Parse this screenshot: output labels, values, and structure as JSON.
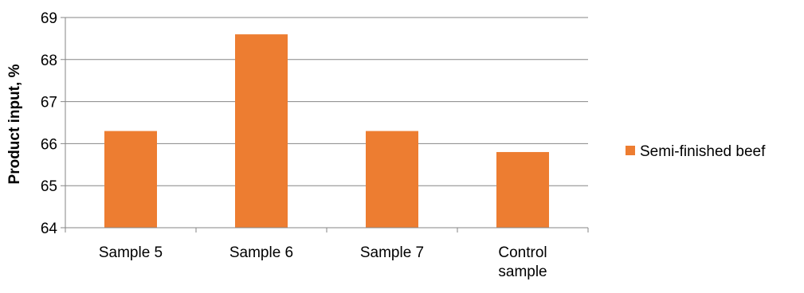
{
  "chart_data": {
    "type": "bar",
    "categories": [
      "Sample 5",
      "Sample 6",
      "Sample 7",
      "Control sample"
    ],
    "series": [
      {
        "name": "Semi-finished beef",
        "values": [
          66.3,
          68.6,
          66.3,
          65.8
        ],
        "color": "#ED7D31"
      }
    ],
    "title": "",
    "xlabel": "",
    "ylabel": "Product input, %",
    "ylim": [
      64,
      69
    ],
    "yticks": [
      "64",
      "65",
      "66",
      "67",
      "68",
      "69"
    ],
    "grid": true,
    "legend_position": "right"
  }
}
